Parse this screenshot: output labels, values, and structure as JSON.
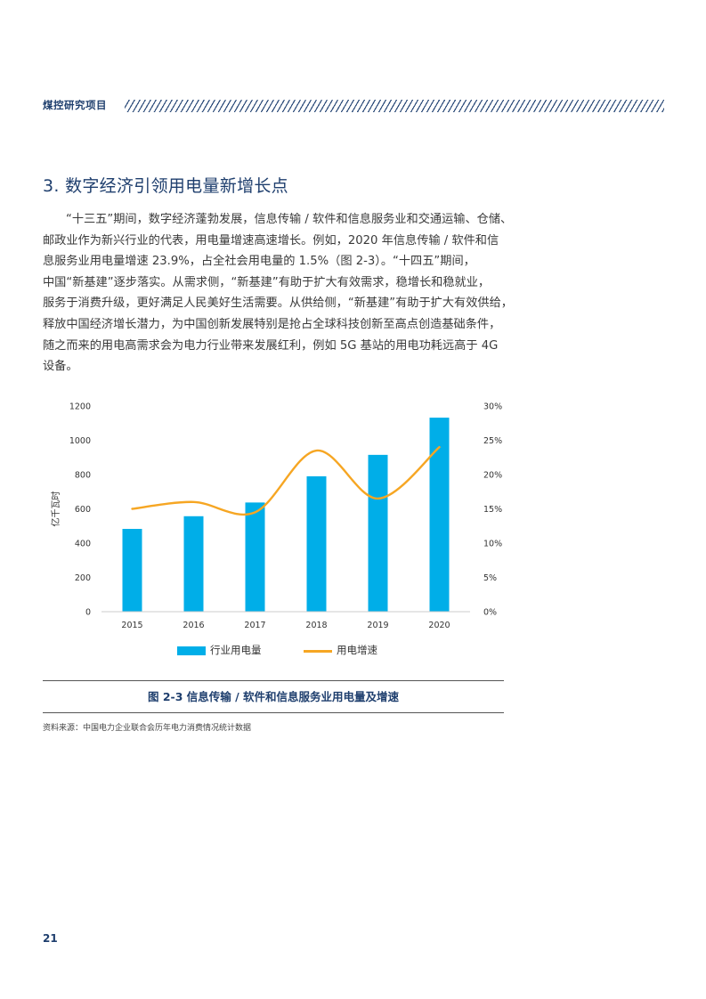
{
  "header": {
    "label": "煤控研究项目"
  },
  "section_title": "3. 数字经济引领用电量新增长点",
  "paragraph_lines": [
    "“十三五”期间，数字经济蓬勃发展，信息传输 / 软件和信息服务业和交通运输、仓储、",
    "邮政业作为新兴行业的代表，用电量增速高速增长。例如，2020 年信息传输 / 软件和信",
    "息服务业用电量增速 23.9%，占全社会用电量的 1.5%（图 2-3）。“十四五”期间，",
    "中国“新基建”逐步落实。从需求侧，“新基建”有助于扩大有效需求，稳增长和稳就业，",
    "服务于消费升级，更好满足人民美好生活需要。从供给侧，“新基建”有助于扩大有效供给，",
    "释放中国经济增长潜力，为中国创新发展特别是抢占全球科技创新至高点创造基础条件，",
    "随之而来的用电高需求会为电力行业带来发展红利，例如 5G 基站的用电功耗远高于 4G",
    "设备。"
  ],
  "chart_data": {
    "type": "bar",
    "categories": [
      "2015",
      "2016",
      "2017",
      "2018",
      "2019",
      "2020"
    ],
    "series": [
      {
        "name": "行业用电量",
        "type": "bar",
        "axis": "left",
        "color": "#00aee8",
        "values": [
          483,
          557,
          637,
          790,
          915,
          1132
        ]
      },
      {
        "name": "用电增速",
        "type": "line",
        "axis": "right",
        "color": "#f6a623",
        "values": [
          0.15,
          0.16,
          0.145,
          0.235,
          0.165,
          0.24
        ]
      }
    ],
    "ylabel": "亿千瓦时",
    "ylim": [
      0,
      1200
    ],
    "yticks": [
      "0",
      "200",
      "400",
      "600",
      "800",
      "1000",
      "1200"
    ],
    "y2lim": [
      0,
      0.3
    ],
    "y2ticks": [
      "0%",
      "5%",
      "10%",
      "15%",
      "20%",
      "25%",
      "30%"
    ],
    "grid": false,
    "legend": "bottom"
  },
  "figure_caption": "图 2-3 信息传输 / 软件和信息服务业用电量及增速",
  "source": "资料来源：中国电力企业联合会历年电力消费情况统计数据",
  "page_number": "21"
}
